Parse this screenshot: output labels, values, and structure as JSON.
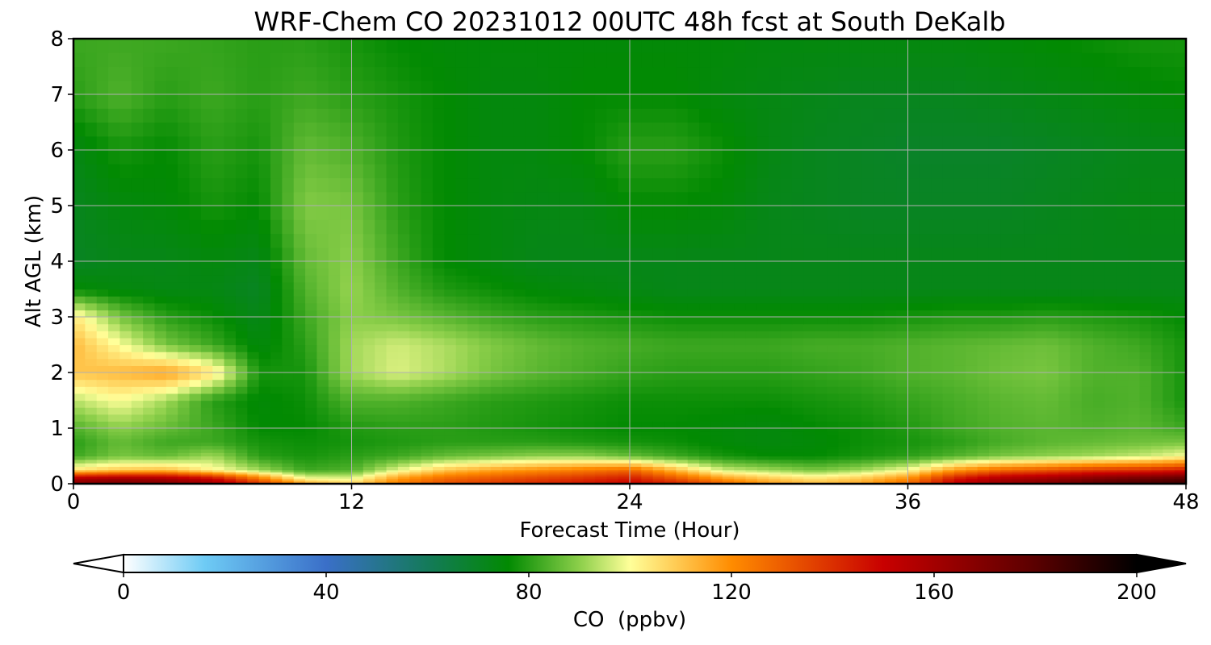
{
  "chart_data": {
    "type": "heatmap",
    "title": "WRF-Chem CO  20231012 00UTC 48h fcst at South DeKalb",
    "xlabel": "Forecast Time (Hour)",
    "ylabel": "Alt AGL (km)",
    "xlim": [
      0,
      48
    ],
    "ylim": [
      0,
      8
    ],
    "x_ticks": [
      0,
      12,
      24,
      36,
      48
    ],
    "y_ticks": [
      0,
      1,
      2,
      3,
      4,
      5,
      6,
      7,
      8
    ],
    "grid": true,
    "colorbar": {
      "label": "CO  (ppbv)",
      "min": 0,
      "max": 200,
      "ticks": [
        0,
        40,
        80,
        120,
        160,
        200
      ],
      "extend": "both",
      "orientation": "horizontal",
      "position": "bottom",
      "colors": [
        {
          "v": 0,
          "c": "#ffffff"
        },
        {
          "v": 16,
          "c": "#6ecbf5"
        },
        {
          "v": 40,
          "c": "#3a6fc8"
        },
        {
          "v": 60,
          "c": "#147a5a"
        },
        {
          "v": 76,
          "c": "#028a02"
        },
        {
          "v": 90,
          "c": "#8ccf4a"
        },
        {
          "v": 100,
          "c": "#ffff99"
        },
        {
          "v": 120,
          "c": "#ff8c00"
        },
        {
          "v": 150,
          "c": "#c80000"
        },
        {
          "v": 180,
          "c": "#5a0000"
        },
        {
          "v": 200,
          "c": "#000000"
        }
      ]
    },
    "grid_x": [
      0,
      2,
      4,
      6,
      8,
      10,
      12,
      14,
      16,
      18,
      20,
      22,
      24,
      26,
      28,
      30,
      32,
      34,
      36,
      38,
      40,
      42,
      44,
      46,
      48
    ],
    "grid_y": [
      0,
      0.1,
      0.25,
      0.5,
      0.75,
      1,
      1.5,
      2,
      2.5,
      3,
      3.5,
      4,
      5,
      6,
      7,
      8
    ],
    "values": [
      [
        168,
        172,
        170,
        162,
        140,
        118,
        108,
        124,
        133,
        138,
        142,
        146,
        150,
        144,
        130,
        118,
        112,
        116,
        128,
        152,
        165,
        170,
        180,
        185,
        188
      ],
      [
        158,
        162,
        160,
        150,
        125,
        100,
        98,
        118,
        128,
        132,
        136,
        140,
        145,
        132,
        118,
        110,
        105,
        110,
        120,
        145,
        158,
        162,
        170,
        175,
        180
      ],
      [
        105,
        110,
        112,
        102,
        92,
        82,
        84,
        98,
        110,
        116,
        120,
        124,
        128,
        112,
        96,
        92,
        88,
        92,
        100,
        118,
        128,
        132,
        138,
        140,
        145
      ],
      [
        82,
        88,
        86,
        92,
        80,
        78,
        80,
        82,
        86,
        88,
        90,
        90,
        86,
        82,
        78,
        76,
        76,
        78,
        80,
        84,
        88,
        90,
        92,
        95,
        100
      ],
      [
        80,
        86,
        82,
        82,
        78,
        77,
        78,
        79,
        80,
        80,
        80,
        79,
        78,
        77,
        75,
        74,
        75,
        77,
        78,
        80,
        83,
        85,
        86,
        87,
        88
      ],
      [
        84,
        90,
        86,
        82,
        76,
        76,
        79,
        80,
        80,
        79,
        78,
        77,
        76,
        76,
        75,
        74,
        76,
        77,
        79,
        82,
        84,
        85,
        84,
        85,
        82
      ],
      [
        94,
        100,
        92,
        80,
        75,
        77,
        84,
        84,
        82,
        80,
        79,
        78,
        77,
        77,
        77,
        77,
        78,
        79,
        81,
        83,
        85,
        86,
        83,
        84,
        78
      ],
      [
        110,
        112,
        116,
        105,
        78,
        78,
        92,
        97,
        93,
        88,
        85,
        83,
        81,
        80,
        80,
        80,
        81,
        82,
        84,
        85,
        87,
        88,
        84,
        84,
        78
      ],
      [
        112,
        100,
        88,
        82,
        74,
        80,
        92,
        96,
        93,
        89,
        86,
        84,
        83,
        82,
        82,
        82,
        83,
        83,
        84,
        85,
        86,
        87,
        84,
        82,
        78
      ],
      [
        104,
        88,
        80,
        77,
        72,
        82,
        90,
        88,
        85,
        82,
        80,
        79,
        78,
        77,
        77,
        77,
        77,
        77,
        78,
        79,
        79,
        80,
        79,
        78,
        76
      ],
      [
        76,
        74,
        73,
        73,
        70,
        84,
        91,
        84,
        79,
        77,
        75,
        74,
        73,
        72,
        72,
        72,
        72,
        72,
        72,
        72,
        72,
        72,
        72,
        72,
        72
      ],
      [
        70,
        72,
        72,
        74,
        72,
        86,
        90,
        82,
        76,
        74,
        72,
        72,
        72,
        72,
        72,
        72,
        72,
        72,
        72,
        72,
        72,
        72,
        72,
        72,
        72
      ],
      [
        71,
        74,
        75,
        78,
        76,
        89,
        88,
        80,
        76,
        74,
        73,
        73,
        76,
        76,
        75,
        72,
        71,
        70,
        70,
        70,
        70,
        71,
        72,
        73,
        73
      ],
      [
        73,
        78,
        76,
        80,
        78,
        86,
        84,
        79,
        76,
        74,
        74,
        76,
        80,
        80,
        77,
        73,
        71,
        70,
        69,
        69,
        69,
        70,
        71,
        72,
        72
      ],
      [
        80,
        84,
        80,
        82,
        80,
        82,
        80,
        78,
        76,
        74,
        74,
        76,
        76,
        76,
        74,
        73,
        72,
        71,
        71,
        71,
        72,
        73,
        74,
        75,
        76
      ],
      [
        82,
        82,
        82,
        81,
        80,
        80,
        78,
        76,
        75,
        75,
        75,
        75,
        75,
        75,
        75,
        74,
        74,
        74,
        74,
        74,
        75,
        76,
        77,
        78,
        78
      ]
    ]
  }
}
